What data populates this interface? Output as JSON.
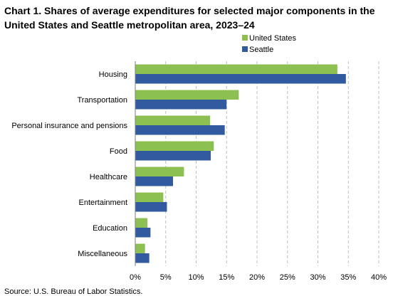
{
  "chart_data": {
    "type": "bar",
    "orientation": "horizontal",
    "title": "Chart 1. Shares of average expenditures for selected major components in the United States and Seattle metropolitan area, 2023–24",
    "categories": [
      "Housing",
      "Transportation",
      "Personal insurance and pensions",
      "Food",
      "Healthcare",
      "Entertainment",
      "Education",
      "Miscellaneous"
    ],
    "series": [
      {
        "name": "United States",
        "color": "#8cc152",
        "values": [
          33.2,
          17.0,
          12.3,
          12.9,
          8.0,
          4.6,
          2.0,
          1.6
        ]
      },
      {
        "name": "Seattle",
        "color": "#325aa0",
        "values": [
          34.6,
          15.0,
          14.7,
          12.4,
          6.2,
          5.2,
          2.5,
          2.3
        ]
      }
    ],
    "xlim": [
      0,
      40
    ],
    "xticks": [
      "0%",
      "5%",
      "10%",
      "15%",
      "20%",
      "25%",
      "30%",
      "35%",
      "40%"
    ],
    "grid": "vertical-dashed",
    "legend_position": "top-right"
  },
  "source": "Source: U.S. Bureau of Labor Statistics."
}
